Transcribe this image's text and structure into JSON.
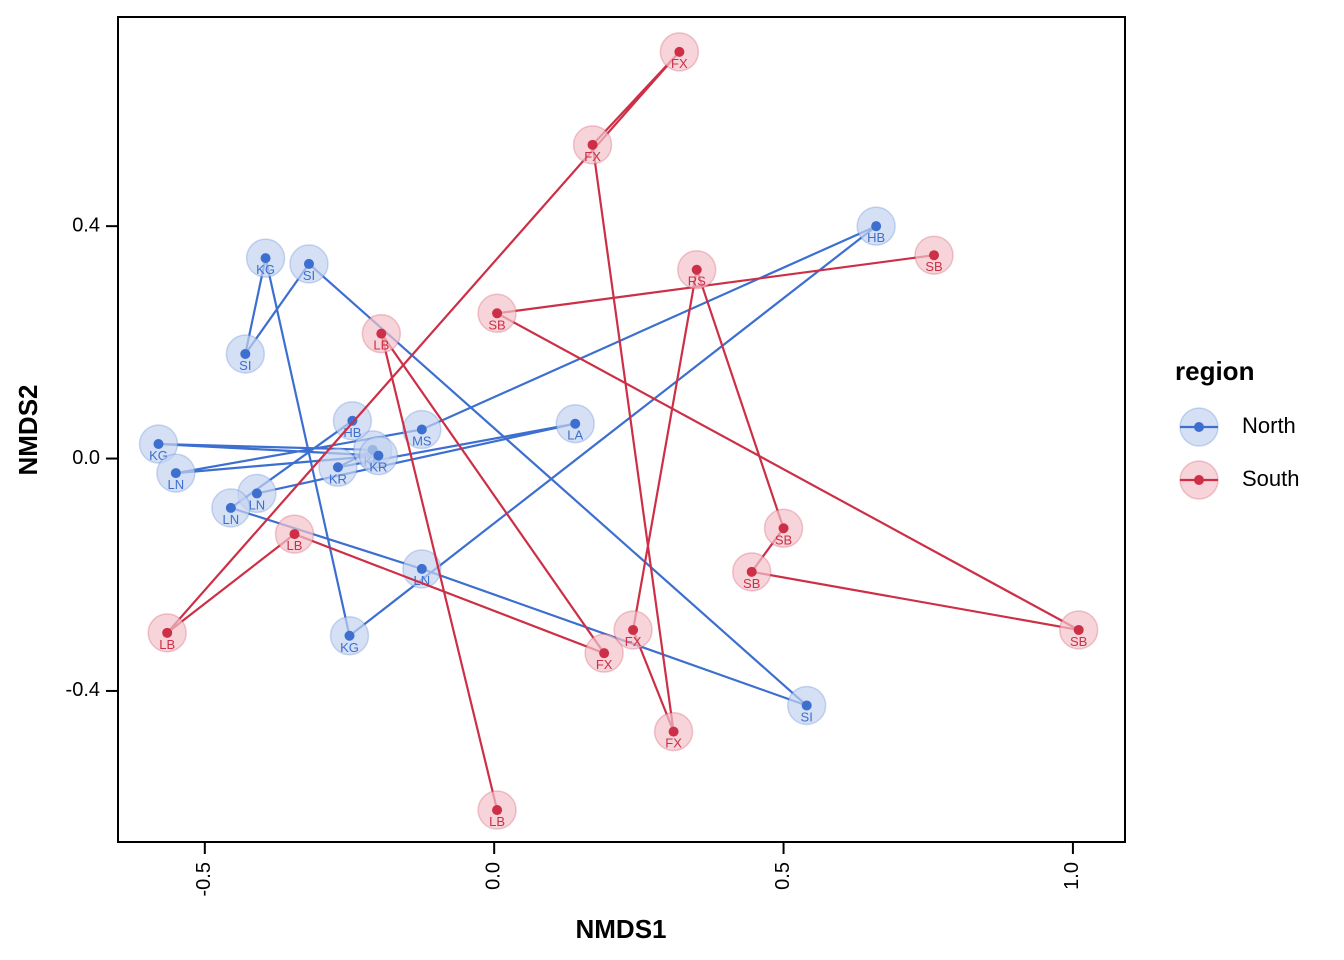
{
  "chart_data": {
    "type": "scatter",
    "xlabel": "NMDS1",
    "ylabel": "NMDS2",
    "xlim": [
      -0.65,
      1.09
    ],
    "ylim": [
      -0.66,
      0.76
    ],
    "x_ticks": [
      -0.5,
      0.0,
      0.5,
      1.0
    ],
    "x_tick_labels": [
      "-0.5",
      "0.0",
      "0.5",
      "1.0"
    ],
    "y_ticks": [
      -0.4,
      0.0,
      0.4
    ],
    "y_tick_labels": [
      "-0.4",
      "0.0",
      "0.4"
    ],
    "grid": false,
    "legend": {
      "title": "region",
      "position": "right"
    },
    "series": [
      {
        "name": "North",
        "color": "#3c6fcf",
        "points": [
          {
            "x": -0.41,
            "y": -0.06,
            "label": "LN"
          },
          {
            "x": 0.14,
            "y": 0.06,
            "label": "LA"
          },
          {
            "x": -0.27,
            "y": -0.015,
            "label": "KR"
          },
          {
            "x": -0.21,
            "y": 0.015,
            "label": "KR"
          },
          {
            "x": -0.58,
            "y": 0.025,
            "label": "KG"
          },
          {
            "x": -0.2,
            "y": 0.005,
            "label": "KR"
          },
          {
            "x": -0.55,
            "y": -0.025,
            "label": "LN"
          },
          {
            "x": -0.125,
            "y": 0.05,
            "label": "MS"
          },
          {
            "x": 0.66,
            "y": 0.4,
            "label": "HB"
          },
          {
            "x": -0.25,
            "y": -0.305,
            "label": "KG"
          },
          {
            "x": -0.395,
            "y": 0.345,
            "label": "KG"
          },
          {
            "x": -0.43,
            "y": 0.18,
            "label": "SI"
          },
          {
            "x": -0.32,
            "y": 0.335,
            "label": "SI"
          },
          {
            "x": 0.54,
            "y": -0.425,
            "label": "SI"
          },
          {
            "x": -0.125,
            "y": -0.19,
            "label": "LN"
          },
          {
            "x": -0.455,
            "y": -0.085,
            "label": "LN"
          },
          {
            "x": -0.245,
            "y": 0.065,
            "label": "HB"
          }
        ]
      },
      {
        "name": "South",
        "color": "#cc2f46",
        "points": [
          {
            "x": 0.005,
            "y": -0.605,
            "label": "LB"
          },
          {
            "x": -0.195,
            "y": 0.215,
            "label": "LB"
          },
          {
            "x": 0.19,
            "y": -0.335,
            "label": "FX"
          },
          {
            "x": -0.345,
            "y": -0.13,
            "label": "LB"
          },
          {
            "x": -0.565,
            "y": -0.3,
            "label": "LB"
          },
          {
            "x": 0.32,
            "y": 0.7,
            "label": "FX"
          },
          {
            "x": 0.17,
            "y": 0.54,
            "label": "FX"
          },
          {
            "x": 0.31,
            "y": -0.47,
            "label": "FX"
          },
          {
            "x": 0.24,
            "y": -0.295,
            "label": "FX"
          },
          {
            "x": 0.35,
            "y": 0.325,
            "label": "RS"
          },
          {
            "x": 0.5,
            "y": -0.12,
            "label": "SB"
          },
          {
            "x": 0.445,
            "y": -0.195,
            "label": "SB"
          },
          {
            "x": 1.01,
            "y": -0.295,
            "label": "SB"
          },
          {
            "x": 0.005,
            "y": 0.25,
            "label": "SB"
          },
          {
            "x": 0.76,
            "y": 0.35,
            "label": "SB"
          }
        ]
      }
    ]
  }
}
